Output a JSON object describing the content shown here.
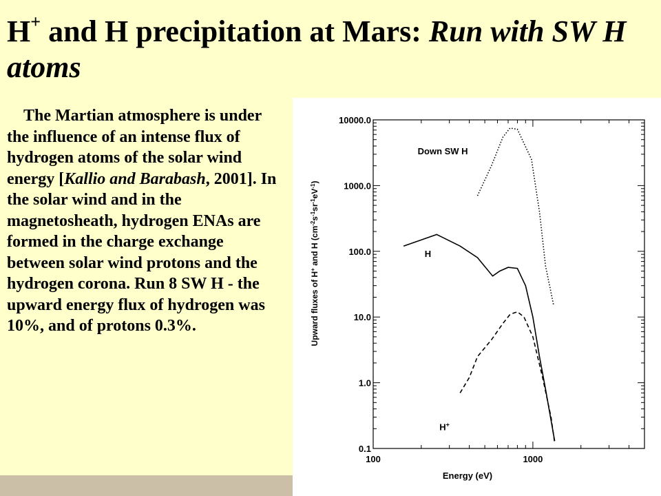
{
  "slide": {
    "title_part1": "H",
    "title_sup": "+",
    "title_part2": " and H precipitation at Mars: ",
    "title_italic": "Run with SW H atoms",
    "body_part1": "The Martian atmosphere is under the influence of an intense flux of hydrogen atoms of the solar wind energy [",
    "body_citation": "Kallio and Barabash",
    "body_part2": ", 2001]. In the solar wind and in the magnetosheath, hydrogen ENAs are formed in the charge exchange between solar wind protons and the hydrogen corona. Run 8 SW H - the upward energy flux of hydrogen was 10%, and of protons 0.3%."
  },
  "colors": {
    "title_band": "#ffffcc",
    "left_panel_bottom": "#cbbfa8",
    "plot_lines": "#000000"
  },
  "chart_data": {
    "type": "line",
    "xscale": "log",
    "yscale": "log",
    "xlim": [
      100,
      5000
    ],
    "ylim": [
      0.1,
      10000
    ],
    "xticks": [
      100,
      1000
    ],
    "xtick_labels": [
      "100",
      "1000"
    ],
    "yticks": [
      0.1,
      1,
      10,
      100,
      1000,
      10000
    ],
    "ytick_labels": [
      "0.1",
      "1.0",
      "10.0",
      "100.0",
      "1000.0",
      "10000.0"
    ],
    "xlabel": "Energy (eV)",
    "ylabel_parts": [
      "Upward fluxes of H",
      "+",
      " and H (cm",
      "-2",
      "s",
      "-1",
      "sr",
      "-1",
      "eV",
      "-1",
      ")"
    ],
    "series": [
      {
        "name": "Down SW H",
        "style": "dotted",
        "x": [
          450,
          550,
          650,
          720,
          800,
          980,
          1100,
          1200,
          1350
        ],
        "y": [
          700,
          2000,
          5500,
          7500,
          7200,
          2500,
          400,
          60,
          15
        ]
      },
      {
        "name": "H",
        "style": "solid",
        "x": [
          155,
          250,
          350,
          450,
          560,
          620,
          700,
          800,
          900,
          1000,
          1100,
          1200,
          1370
        ],
        "y": [
          120,
          180,
          120,
          80,
          42,
          50,
          57,
          55,
          30,
          10,
          2.5,
          0.8,
          0.13
        ]
      },
      {
        "name": "H+",
        "style": "dashed",
        "x": [
          350,
          400,
          450,
          550,
          650,
          720,
          800,
          880,
          1000,
          1150,
          1300,
          1370
        ],
        "y": [
          0.7,
          1.2,
          2.5,
          4.5,
          8,
          11,
          12,
          10,
          5,
          1.2,
          0.3,
          0.12
        ]
      }
    ],
    "annotations": [
      {
        "text": "Down SW H",
        "x": 190,
        "y": 3000
      },
      {
        "text": "H",
        "x": 210,
        "y": 82
      },
      {
        "text": "H",
        "sup": "+",
        "x": 260,
        "y": 0.19
      }
    ]
  }
}
